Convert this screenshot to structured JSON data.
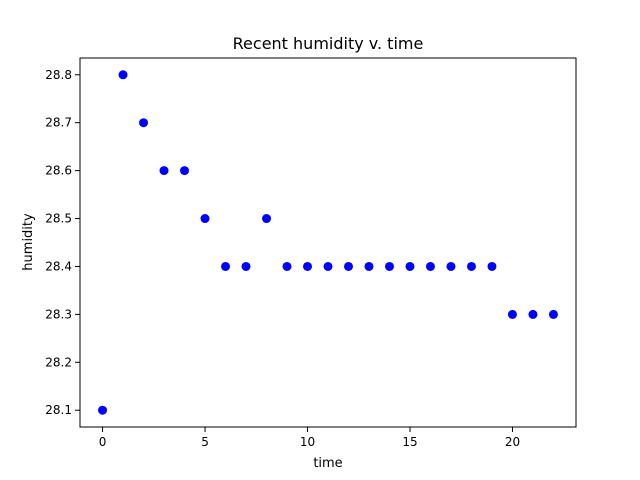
{
  "chart_data": {
    "type": "scatter",
    "title": "Recent humidity v. time",
    "xlabel": "time",
    "ylabel": "humidity",
    "xlim": [
      -1.1,
      23.1
    ],
    "ylim": [
      28.065,
      28.835
    ],
    "xticks": [
      0,
      5,
      10,
      15,
      20
    ],
    "yticks": [
      28.1,
      28.2,
      28.3,
      28.4,
      28.5,
      28.6,
      28.7,
      28.8
    ],
    "marker_color": "#0000ff",
    "grid": false,
    "x": [
      0,
      1,
      2,
      3,
      4,
      5,
      6,
      7,
      8,
      9,
      10,
      11,
      12,
      13,
      14,
      15,
      16,
      17,
      18,
      19,
      20,
      21,
      22
    ],
    "y": [
      28.1,
      28.8,
      28.7,
      28.6,
      28.6,
      28.5,
      28.4,
      28.4,
      28.5,
      28.4,
      28.4,
      28.4,
      28.4,
      28.4,
      28.4,
      28.4,
      28.4,
      28.4,
      28.4,
      28.4,
      28.3,
      28.3,
      28.3
    ]
  }
}
